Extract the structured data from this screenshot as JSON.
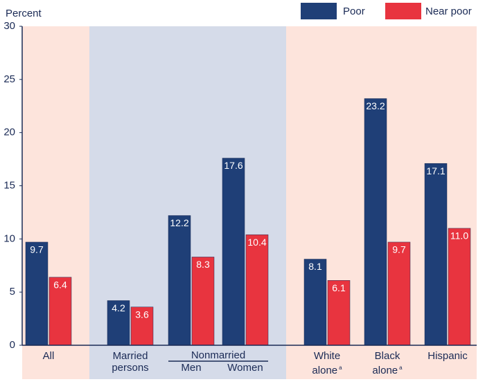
{
  "chart_data": {
    "type": "bar",
    "y_label": "Percent",
    "categories": [
      "All",
      "Married persons",
      "Men",
      "Women",
      "White alone",
      "Black alone",
      "Hispanic"
    ],
    "category_notes": [
      null,
      null,
      null,
      null,
      "a",
      "a",
      null
    ],
    "group_label": "Nonmarried",
    "series": [
      {
        "name": "Poor",
        "color": "#1f3f77",
        "values": [
          9.7,
          4.2,
          12.2,
          17.6,
          8.1,
          23.2,
          17.1
        ],
        "value_labels": [
          "9.7",
          "4.2",
          "12.2",
          "17.6",
          "8.1",
          "23.2",
          "17.1"
        ]
      },
      {
        "name": "Near poor",
        "color": "#e8343f",
        "values": [
          6.4,
          3.6,
          8.3,
          10.4,
          6.1,
          9.7,
          11.0
        ],
        "value_labels": [
          "6.4",
          "3.6",
          "8.3",
          "10.4",
          "6.1",
          "9.7",
          "11.0"
        ]
      }
    ],
    "ylim": [
      0,
      30
    ],
    "yticks": [
      0,
      5,
      10,
      15,
      20,
      25,
      30
    ]
  }
}
